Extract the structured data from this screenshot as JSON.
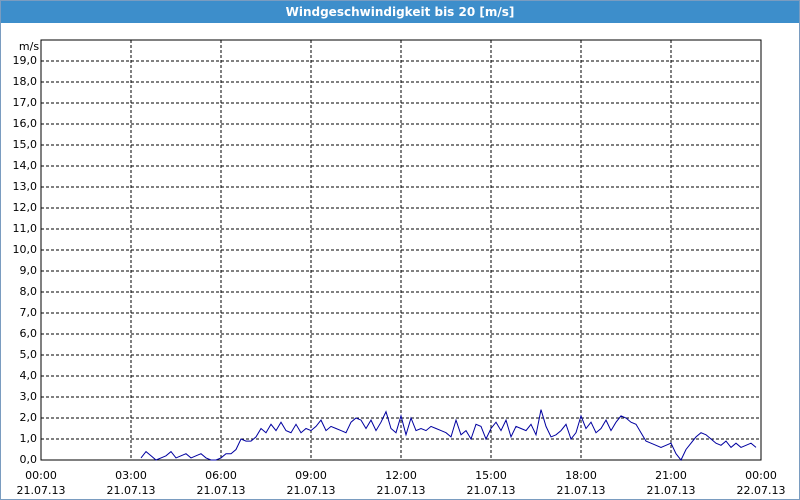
{
  "chart_data": {
    "type": "line",
    "title": "Windgeschwindigkeit bis 20 [m/s]",
    "y_label": "m/s",
    "x": [
      200,
      210,
      220,
      230,
      240,
      250,
      260,
      270,
      280,
      290,
      300,
      310,
      320,
      330,
      340,
      350,
      360,
      370,
      380,
      390,
      400,
      410,
      420,
      430,
      440,
      450,
      460,
      470,
      480,
      490,
      500,
      510,
      520,
      530,
      540,
      550,
      560,
      570,
      580,
      590,
      600,
      610,
      620,
      630,
      640,
      650,
      660,
      670,
      680,
      690,
      700,
      710,
      720,
      730,
      740,
      750,
      760,
      770,
      780,
      790,
      800,
      810,
      820,
      830,
      840,
      850,
      860,
      870,
      880,
      890,
      900,
      910,
      920,
      930,
      940,
      950,
      960,
      970,
      980,
      990,
      1000,
      1010,
      1020,
      1030,
      1040,
      1050,
      1060,
      1070,
      1080,
      1090,
      1100,
      1110,
      1120,
      1130,
      1140,
      1150,
      1160,
      1170,
      1180,
      1190,
      1200,
      1210,
      1220,
      1230,
      1240,
      1250,
      1260,
      1270,
      1280,
      1290,
      1300,
      1310,
      1320,
      1330,
      1340,
      1350,
      1360,
      1370,
      1380,
      1390,
      1400,
      1410,
      1420,
      1430
    ],
    "series": [
      {
        "color": "#0000a0",
        "values": [
          0.1,
          0.4,
          0.2,
          0.0,
          0.1,
          0.2,
          0.4,
          0.1,
          0.2,
          0.3,
          0.1,
          0.2,
          0.3,
          0.1,
          0.0,
          0.0,
          0.1,
          0.3,
          0.3,
          0.5,
          1.0,
          0.9,
          0.9,
          1.1,
          1.5,
          1.3,
          1.7,
          1.4,
          1.8,
          1.4,
          1.3,
          1.7,
          1.3,
          1.5,
          1.4,
          1.6,
          1.9,
          1.4,
          1.6,
          1.5,
          1.4,
          1.3,
          1.8,
          2.0,
          1.9,
          1.5,
          1.9,
          1.4,
          1.8,
          2.3,
          1.5,
          1.3,
          2.1,
          1.2,
          2.0,
          1.4,
          1.5,
          1.4,
          1.6,
          1.5,
          1.4,
          1.3,
          1.1,
          1.9,
          1.2,
          1.4,
          1.0,
          1.7,
          1.6,
          1.0,
          1.5,
          1.8,
          1.4,
          1.9,
          1.1,
          1.6,
          1.5,
          1.4,
          1.7,
          1.2,
          2.4,
          1.6,
          1.1,
          1.2,
          1.4,
          1.7,
          1.0,
          1.3,
          2.1,
          1.5,
          1.8,
          1.3,
          1.5,
          1.9,
          1.4,
          1.8,
          2.1,
          2.0,
          1.8,
          1.7,
          1.3,
          0.9,
          0.8,
          0.7,
          0.6,
          0.7,
          0.8,
          0.3,
          0.0,
          0.5,
          0.8,
          1.1,
          1.3,
          1.2,
          1.0,
          0.8,
          0.7,
          0.9,
          0.6,
          0.8,
          0.6,
          0.7,
          0.8,
          0.6
        ]
      }
    ],
    "xlim": [
      0,
      1440
    ],
    "xticks": [
      {
        "value": 0,
        "label": [
          "00:00",
          "21.07.13"
        ]
      },
      {
        "value": 180,
        "label": [
          "03:00",
          "21.07.13"
        ]
      },
      {
        "value": 360,
        "label": [
          "06:00",
          "21.07.13"
        ]
      },
      {
        "value": 540,
        "label": [
          "09:00",
          "21.07.13"
        ]
      },
      {
        "value": 720,
        "label": [
          "12:00",
          "21.07.13"
        ]
      },
      {
        "value": 900,
        "label": [
          "15:00",
          "21.07.13"
        ]
      },
      {
        "value": 1080,
        "label": [
          "18:00",
          "21.07.13"
        ]
      },
      {
        "value": 1260,
        "label": [
          "21:00",
          "21.07.13"
        ]
      },
      {
        "value": 1440,
        "label": [
          "00:00",
          "22.07.13"
        ]
      }
    ],
    "ylim": [
      0,
      20
    ],
    "yticks": [
      {
        "value": 0,
        "label": "0,0"
      },
      {
        "value": 1,
        "label": "1,0"
      },
      {
        "value": 2,
        "label": "2,0"
      },
      {
        "value": 3,
        "label": "3,0"
      },
      {
        "value": 4,
        "label": "4,0"
      },
      {
        "value": 5,
        "label": "5,0"
      },
      {
        "value": 6,
        "label": "6,0"
      },
      {
        "value": 7,
        "label": "7,0"
      },
      {
        "value": 8,
        "label": "8,0"
      },
      {
        "value": 9,
        "label": "9,0"
      },
      {
        "value": 10,
        "label": "10,0"
      },
      {
        "value": 11,
        "label": "11,0"
      },
      {
        "value": 12,
        "label": "12,0"
      },
      {
        "value": 13,
        "label": "13,0"
      },
      {
        "value": 14,
        "label": "14,0"
      },
      {
        "value": 15,
        "label": "15,0"
      },
      {
        "value": 16,
        "label": "16,0"
      },
      {
        "value": 17,
        "label": "17,0"
      },
      {
        "value": 18,
        "label": "18,0"
      },
      {
        "value": 19,
        "label": "19,0"
      }
    ],
    "grid": true
  }
}
